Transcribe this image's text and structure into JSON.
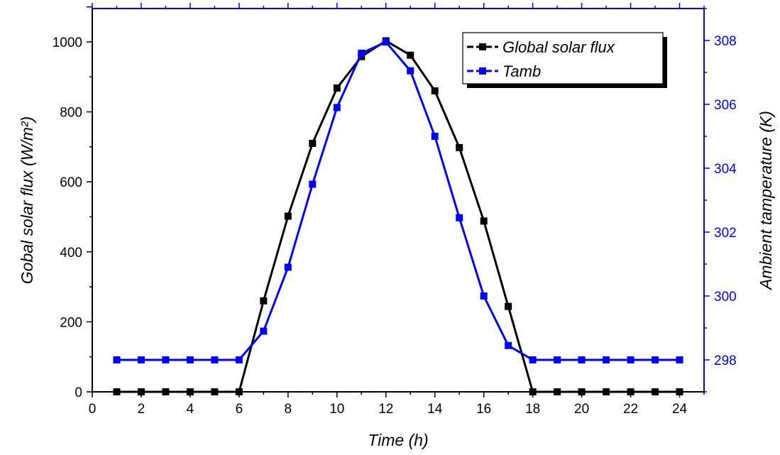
{
  "chart_data": {
    "type": "line",
    "xlabel": "Time (h)",
    "ylabel_left": "Gobal solar flux (W/m²)",
    "ylabel_right": "Ambient tamperature (K)",
    "xlim": [
      0,
      25
    ],
    "ylim_left": [
      0,
      1000
    ],
    "ylim_right": [
      297,
      309
    ],
    "x_ticks": [
      0,
      2,
      4,
      6,
      8,
      10,
      12,
      14,
      16,
      18,
      20,
      22,
      24
    ],
    "y_left_ticks": [
      0,
      200,
      400,
      600,
      800,
      1000
    ],
    "y_right_ticks": [
      298,
      300,
      302,
      304,
      306,
      308
    ],
    "grid": false,
    "legend_position": "top-right",
    "series": [
      {
        "name": "Global solar flux",
        "axis": "left",
        "color": "#000000",
        "x": [
          1,
          2,
          3,
          4,
          5,
          6,
          7,
          8,
          9,
          10,
          11,
          12,
          13,
          14,
          15,
          16,
          17,
          18,
          19,
          20,
          21,
          22,
          23,
          24
        ],
        "values": [
          0,
          0,
          0,
          0,
          0,
          0,
          260,
          502,
          710,
          868,
          958,
          1003,
          962,
          860,
          698,
          488,
          244,
          0,
          0,
          0,
          0,
          0,
          0,
          0
        ]
      },
      {
        "name": "Tamb",
        "axis": "right",
        "color": "#0000ff",
        "x": [
          1,
          2,
          3,
          4,
          5,
          6,
          7,
          8,
          9,
          10,
          11,
          12,
          13,
          14,
          15,
          16,
          17,
          18,
          19,
          20,
          21,
          22,
          23,
          24
        ],
        "values": [
          298,
          298,
          298,
          298,
          298,
          298,
          298.9,
          300.9,
          303.5,
          305.9,
          307.6,
          307.95,
          307.05,
          305.0,
          302.45,
          300.0,
          298.45,
          298,
          298,
          298,
          298,
          298,
          298,
          298
        ]
      }
    ]
  }
}
